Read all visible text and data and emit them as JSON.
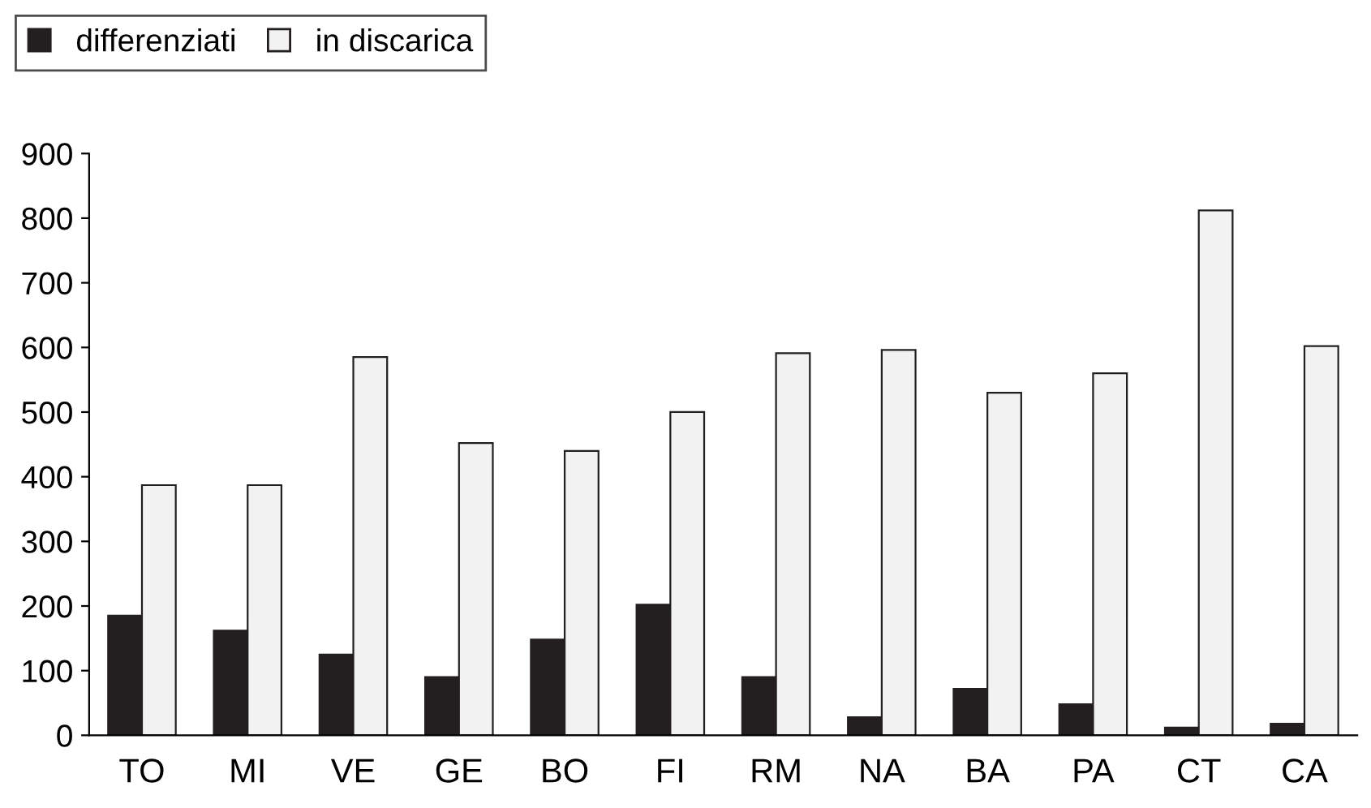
{
  "chart_data": {
    "type": "bar",
    "categories": [
      "TO",
      "MI",
      "VE",
      "GE",
      "BO",
      "FI",
      "RM",
      "NA",
      "BA",
      "PA",
      "CT",
      "CA"
    ],
    "series": [
      {
        "name": "differenziati",
        "color": "#231f20",
        "values": [
          185,
          162,
          125,
          90,
          148,
          202,
          90,
          28,
          72,
          48,
          12,
          18
        ]
      },
      {
        "name": "in discarica",
        "color": "#f2f2f2",
        "values": [
          387,
          387,
          585,
          452,
          440,
          500,
          591,
          596,
          530,
          560,
          812,
          602
        ]
      }
    ],
    "ylim": [
      0,
      900
    ],
    "yticks": [
      0,
      100,
      200,
      300,
      400,
      500,
      600,
      700,
      800,
      900
    ],
    "grid": false,
    "legend": "top left"
  }
}
